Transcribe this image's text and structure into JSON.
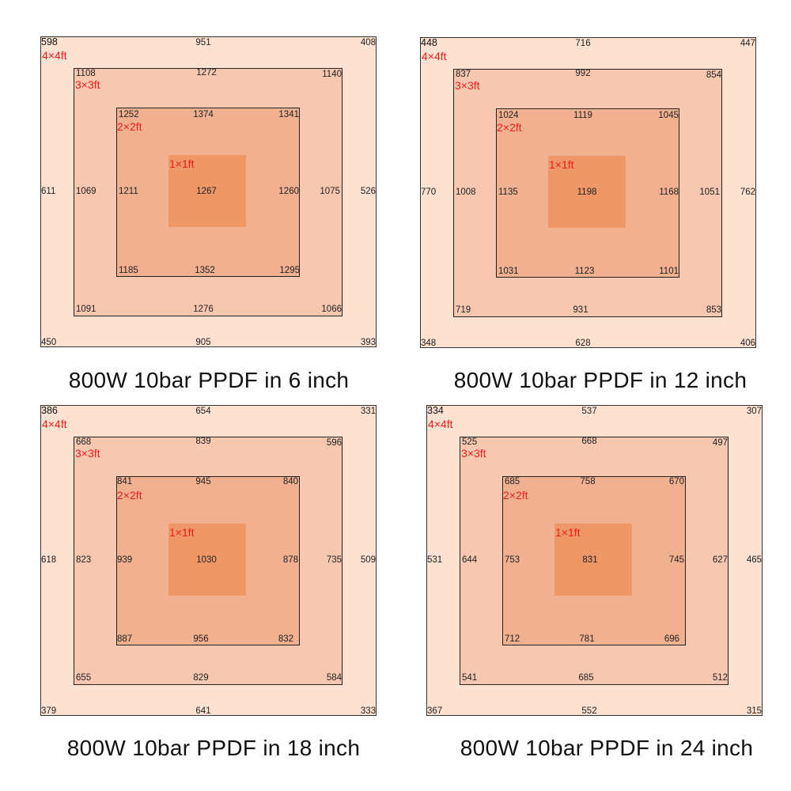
{
  "panels": [
    {
      "caption": "800W 10bar PPDF in 6 inch",
      "labels": {
        "sq4": "4×4ft",
        "sq3": "3×3ft",
        "sq2": "2×2ft",
        "sq1": "1×1ft"
      },
      "sq4": {
        "top_left": "598",
        "top_mid": "951",
        "top_right": "408",
        "mid_left": "611",
        "mid_right": "526",
        "bot_left": "450",
        "bot_mid": "905",
        "bot_right": "393"
      },
      "sq3": {
        "top_left": "1108",
        "top_mid": "1272",
        "top_right": "1140",
        "mid_left": "1069",
        "mid_right": "1075",
        "bot_left": "1091",
        "bot_mid": "1276",
        "bot_right": "1066"
      },
      "sq2": {
        "top_left": "1252",
        "top_mid": "1374",
        "top_right": "1341",
        "mid_left": "1211",
        "mid_right": "1260",
        "bot_left": "1185",
        "bot_mid": "1352",
        "bot_right": "1295"
      },
      "sq1": {
        "center": "1267"
      }
    },
    {
      "caption": "800W 10bar PPDF in 12 inch",
      "labels": {
        "sq4": "4×4ft",
        "sq3": "3×3ft",
        "sq2": "2×2ft",
        "sq1": "1×1ft"
      },
      "sq4": {
        "top_left": "448",
        "top_mid": "716",
        "top_right": "447",
        "mid_left": "770",
        "mid_right": "762",
        "bot_left": "348",
        "bot_mid": "628",
        "bot_right": "406"
      },
      "sq3": {
        "top_left": "837",
        "top_mid": "992",
        "top_right": "854",
        "mid_left": "1008",
        "mid_right": "1051",
        "bot_left": "719",
        "bot_mid": "931",
        "bot_right": "853"
      },
      "sq2": {
        "top_left": "1024",
        "top_mid": "1119",
        "top_right": "1045",
        "mid_left": "1135",
        "mid_right": "1168",
        "bot_left": "1031",
        "bot_mid": "1123",
        "bot_right": "1101"
      },
      "sq1": {
        "center": "1198"
      }
    },
    {
      "caption": "800W 10bar PPDF in 18 inch",
      "labels": {
        "sq4": "4×4ft",
        "sq3": "3×3ft",
        "sq2": "2×2ft",
        "sq1": "1×1ft"
      },
      "sq4": {
        "top_left": "386",
        "top_mid": "654",
        "top_right": "331",
        "mid_left": "618",
        "mid_right": "509",
        "bot_left": "379",
        "bot_mid": "641",
        "bot_right": "333"
      },
      "sq3": {
        "top_left": "668",
        "top_mid": "839",
        "top_right": "596",
        "mid_left": "823",
        "mid_right": "735",
        "bot_left": "655",
        "bot_mid": "829",
        "bot_right": "584"
      },
      "sq2": {
        "top_left": "841",
        "top_mid": "945",
        "top_right": "840",
        "mid_left": "939",
        "mid_right": "878",
        "bot_left": "887",
        "bot_mid": "956",
        "bot_right": "832"
      },
      "sq1": {
        "center": "1030"
      }
    },
    {
      "caption": "800W 10bar PPDF in 24 inch",
      "labels": {
        "sq4": "4×4ft",
        "sq3": "3×3ft",
        "sq2": "2×2ft",
        "sq1": "1×1ft"
      },
      "sq4": {
        "top_left": "334",
        "top_mid": "537",
        "top_right": "307",
        "mid_left": "531",
        "mid_right": "465",
        "bot_left": "367",
        "bot_mid": "552",
        "bot_right": "315"
      },
      "sq3": {
        "top_left": "525",
        "top_mid": "668",
        "top_right": "497",
        "mid_left": "644",
        "mid_right": "627",
        "bot_left": "541",
        "bot_mid": "685",
        "bot_right": "512"
      },
      "sq2": {
        "top_left": "685",
        "top_mid": "758",
        "top_right": "670",
        "mid_left": "753",
        "mid_right": "745",
        "bot_left": "712",
        "bot_mid": "781",
        "bot_right": "696"
      },
      "sq1": {
        "center": "831"
      }
    }
  ]
}
